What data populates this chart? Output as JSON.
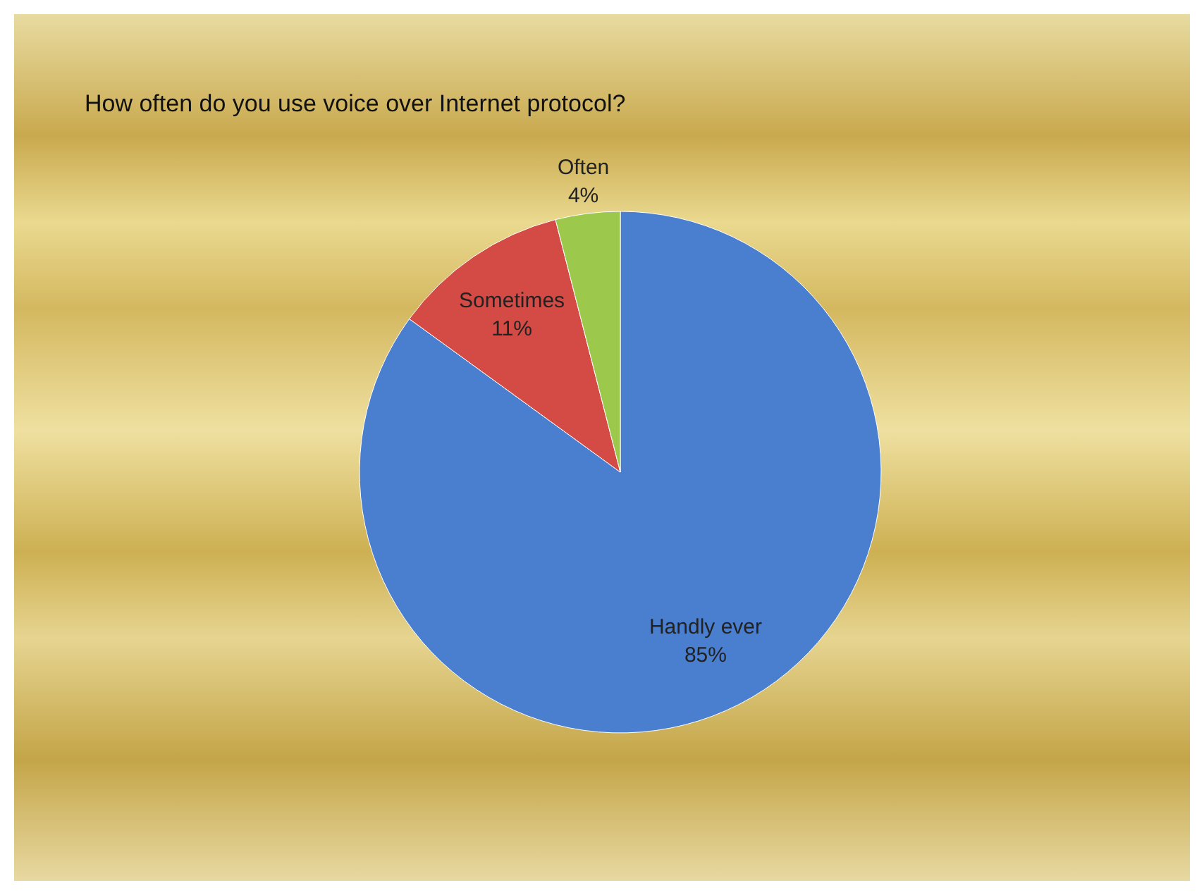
{
  "chart_data": {
    "type": "pie",
    "title": "How often do you use voice over Internet protocol?",
    "categories": [
      "Handly ever",
      "Sometimes",
      "Often"
    ],
    "values": [
      85,
      11,
      4
    ],
    "value_labels": [
      "85%",
      "11%",
      "4%"
    ],
    "colors": [
      "#4a7fd0",
      "#d44a45",
      "#9cc84c"
    ],
    "legend": false
  }
}
